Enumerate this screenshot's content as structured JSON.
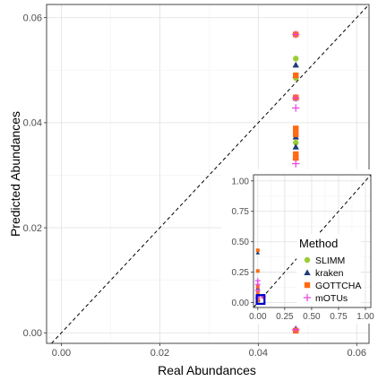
{
  "chart_data": [
    {
      "type": "scatter",
      "xlabel": "Real Abundances",
      "ylabel": "Predicted Abundances",
      "xlim": [
        -0.003,
        0.0625
      ],
      "ylim": [
        -0.002,
        0.0625
      ],
      "x_ticks": [
        "0.00",
        "0.02",
        "0.04",
        "0.06"
      ],
      "x_tick_values": [
        0.0,
        0.02,
        0.04,
        0.06
      ],
      "y_ticks": [
        "0.00",
        "0.02",
        "0.04",
        "0.06"
      ],
      "y_tick_values": [
        0.0,
        0.02,
        0.04,
        0.06
      ],
      "grid": true,
      "reference_line": "y = x",
      "series": [
        {
          "name": "SLIMM",
          "color": "#9acd32",
          "shape": "circle",
          "points": [
            [
              0.04762,
              0.0522
            ],
            [
              0.04762,
              0.0485
            ],
            [
              0.04762,
              0.0447
            ],
            [
              0.04762,
              0.0362
            ],
            [
              0.04762,
              0.0338
            ],
            [
              0.04762,
              0.0005
            ]
          ]
        },
        {
          "name": "kraken",
          "color": "#1f3d7a",
          "shape": "triangle",
          "points": [
            [
              0.04762,
              0.051
            ],
            [
              0.04762,
              0.049
            ],
            [
              0.04762,
              0.0447
            ],
            [
              0.04762,
              0.0373
            ],
            [
              0.04762,
              0.0354
            ],
            [
              0.04762,
              0.0335
            ],
            [
              0.04762,
              0.0008
            ]
          ]
        },
        {
          "name": "GOTTCHA",
          "color": "#ff6a13",
          "shape": "square",
          "points": [
            [
              0.04762,
              0.0568
            ],
            [
              0.04762,
              0.049
            ],
            [
              0.04762,
              0.0448
            ],
            [
              0.04762,
              0.0389
            ],
            [
              0.04762,
              0.0378
            ],
            [
              0.04762,
              0.034
            ],
            [
              0.04762,
              0.0333
            ],
            [
              0.04762,
              0.0004
            ]
          ]
        },
        {
          "name": "mOTUs",
          "color": "#e640e6",
          "shape": "plus",
          "points": [
            [
              0.04762,
              0.0568
            ],
            [
              0.04762,
              0.0447
            ],
            [
              0.04762,
              0.0428
            ],
            [
              0.04762,
              0.0322
            ],
            [
              0.04762,
              0.0006
            ]
          ]
        }
      ]
    },
    {
      "type": "scatter",
      "xlim": [
        -0.04,
        1.05
      ],
      "ylim": [
        -0.04,
        1.05
      ],
      "x_ticks": [
        "0.00",
        "0.25",
        "0.50",
        "0.75",
        "1.00"
      ],
      "x_tick_values": [
        0.0,
        0.25,
        0.5,
        0.75,
        1.0
      ],
      "y_ticks": [
        "0.00",
        "0.25",
        "0.50",
        "0.75",
        "1.00"
      ],
      "y_tick_values": [
        0.0,
        0.25,
        0.5,
        0.75,
        1.0
      ],
      "grid": true,
      "reference_line": "y = x",
      "legend": {
        "title": "Method",
        "placement": "inside-top-right",
        "entries": [
          "SLIMM",
          "kraken",
          "GOTTCHA",
          "mOTUs"
        ]
      },
      "series": [
        {
          "name": "SLIMM",
          "color": "#9acd32",
          "shape": "circle",
          "points": [
            [
              0.0,
              0.09
            ],
            [
              0.0,
              0.06
            ],
            [
              0.0,
              0.03
            ],
            [
              0.0,
              0.0
            ],
            [
              0.05,
              0.05
            ]
          ]
        },
        {
          "name": "kraken",
          "color": "#1f3d7a",
          "shape": "triangle",
          "points": [
            [
              0.0,
              0.41
            ],
            [
              0.0,
              0.12
            ],
            [
              0.0,
              0.06
            ],
            [
              0.0,
              0.02
            ],
            [
              0.05,
              0.05
            ]
          ]
        },
        {
          "name": "GOTTCHA",
          "color": "#ff6a13",
          "shape": "square",
          "points": [
            [
              0.0,
              0.43
            ],
            [
              0.0,
              0.26
            ],
            [
              0.0,
              0.13
            ],
            [
              0.0,
              0.08
            ],
            [
              0.0,
              0.02
            ],
            [
              0.05,
              0.05
            ]
          ]
        },
        {
          "name": "mOTUs",
          "color": "#e640e6",
          "shape": "plus",
          "points": [
            [
              0.0,
              0.18
            ],
            [
              0.0,
              0.15
            ],
            [
              0.0,
              0.1
            ],
            [
              0.0,
              0.04
            ],
            [
              0.05,
              0.05
            ]
          ]
        }
      ],
      "highlight_box": {
        "x": [
          -0.01,
          0.062
        ],
        "y": [
          -0.01,
          0.062
        ],
        "color": "#0000cc"
      }
    }
  ]
}
